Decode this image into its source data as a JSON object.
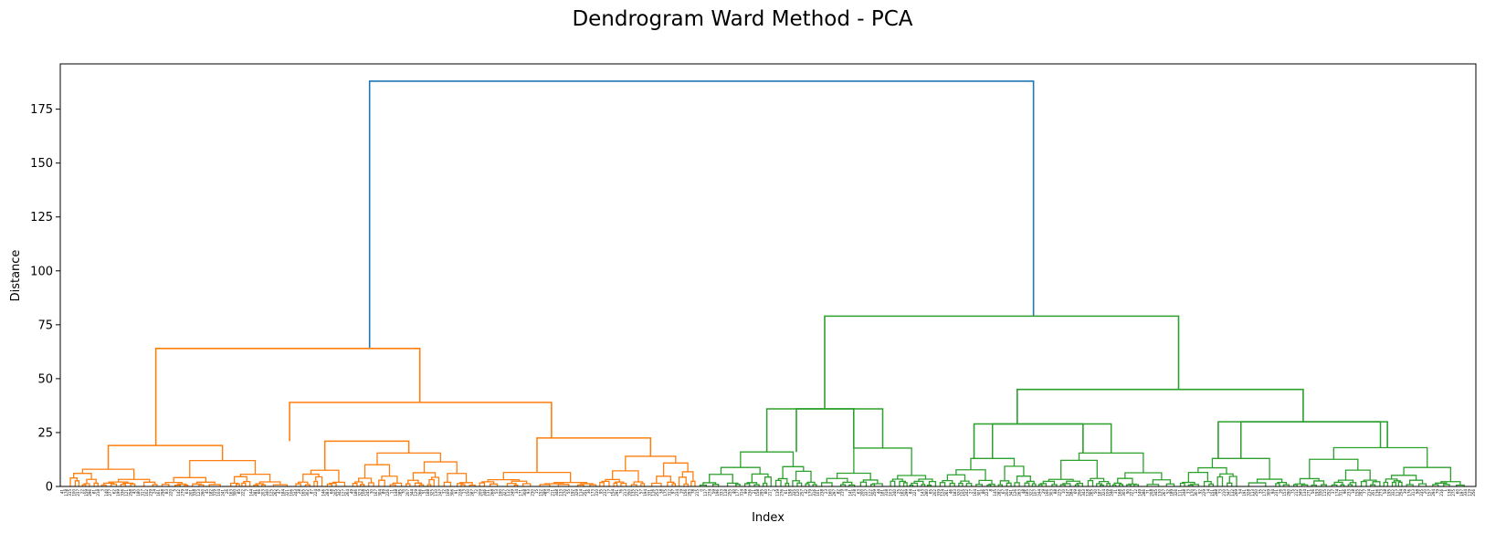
{
  "chart_data": {
    "type": "dendrogram",
    "title": "Dendrogram Ward Method - PCA",
    "xlabel": "Index",
    "ylabel": "Distance",
    "ylim": [
      0,
      196
    ],
    "yticks": [
      0,
      25,
      50,
      75,
      100,
      125,
      150,
      175
    ],
    "grid": false,
    "legend": "none",
    "colors": {
      "root": "#1f77b4",
      "cluster_1": "#ff7f0e",
      "cluster_2": "#2ca02c"
    },
    "leaf_count": 352,
    "links": [
      {
        "x": [
          0.2185,
          0.6875
        ],
        "y": 188,
        "child_heights": [
          64,
          79
        ],
        "color": "root"
      },
      {
        "x": [
          0.0675,
          0.254
        ],
        "y": 64,
        "child_heights": [
          19,
          39
        ],
        "color": "cluster_1"
      },
      {
        "x": [
          0.162,
          0.347
        ],
        "y": 39,
        "child_heights": [
          21,
          22.5
        ],
        "color": "cluster_1"
      },
      {
        "x": [
          0.54,
          0.79
        ],
        "y": 79,
        "child_heights": [
          36,
          45
        ],
        "color": "cluster_2"
      },
      {
        "x": [
          0.676,
          0.878
        ],
        "y": 45,
        "child_heights": [
          29,
          30
        ],
        "color": "cluster_2"
      },
      {
        "x": [
          0.52,
          0.5605
        ],
        "y": 36,
        "child_heights": [
          16,
          17.8
        ],
        "color": "cluster_2"
      },
      {
        "x": [
          0.6455,
          0.7225
        ],
        "y": 29,
        "child_heights": [
          13,
          15.5
        ],
        "color": "cluster_2"
      },
      {
        "x": [
          0.818,
          0.9375
        ],
        "y": 30,
        "child_heights": [
          13,
          18
        ],
        "color": "cluster_2"
      }
    ]
  }
}
